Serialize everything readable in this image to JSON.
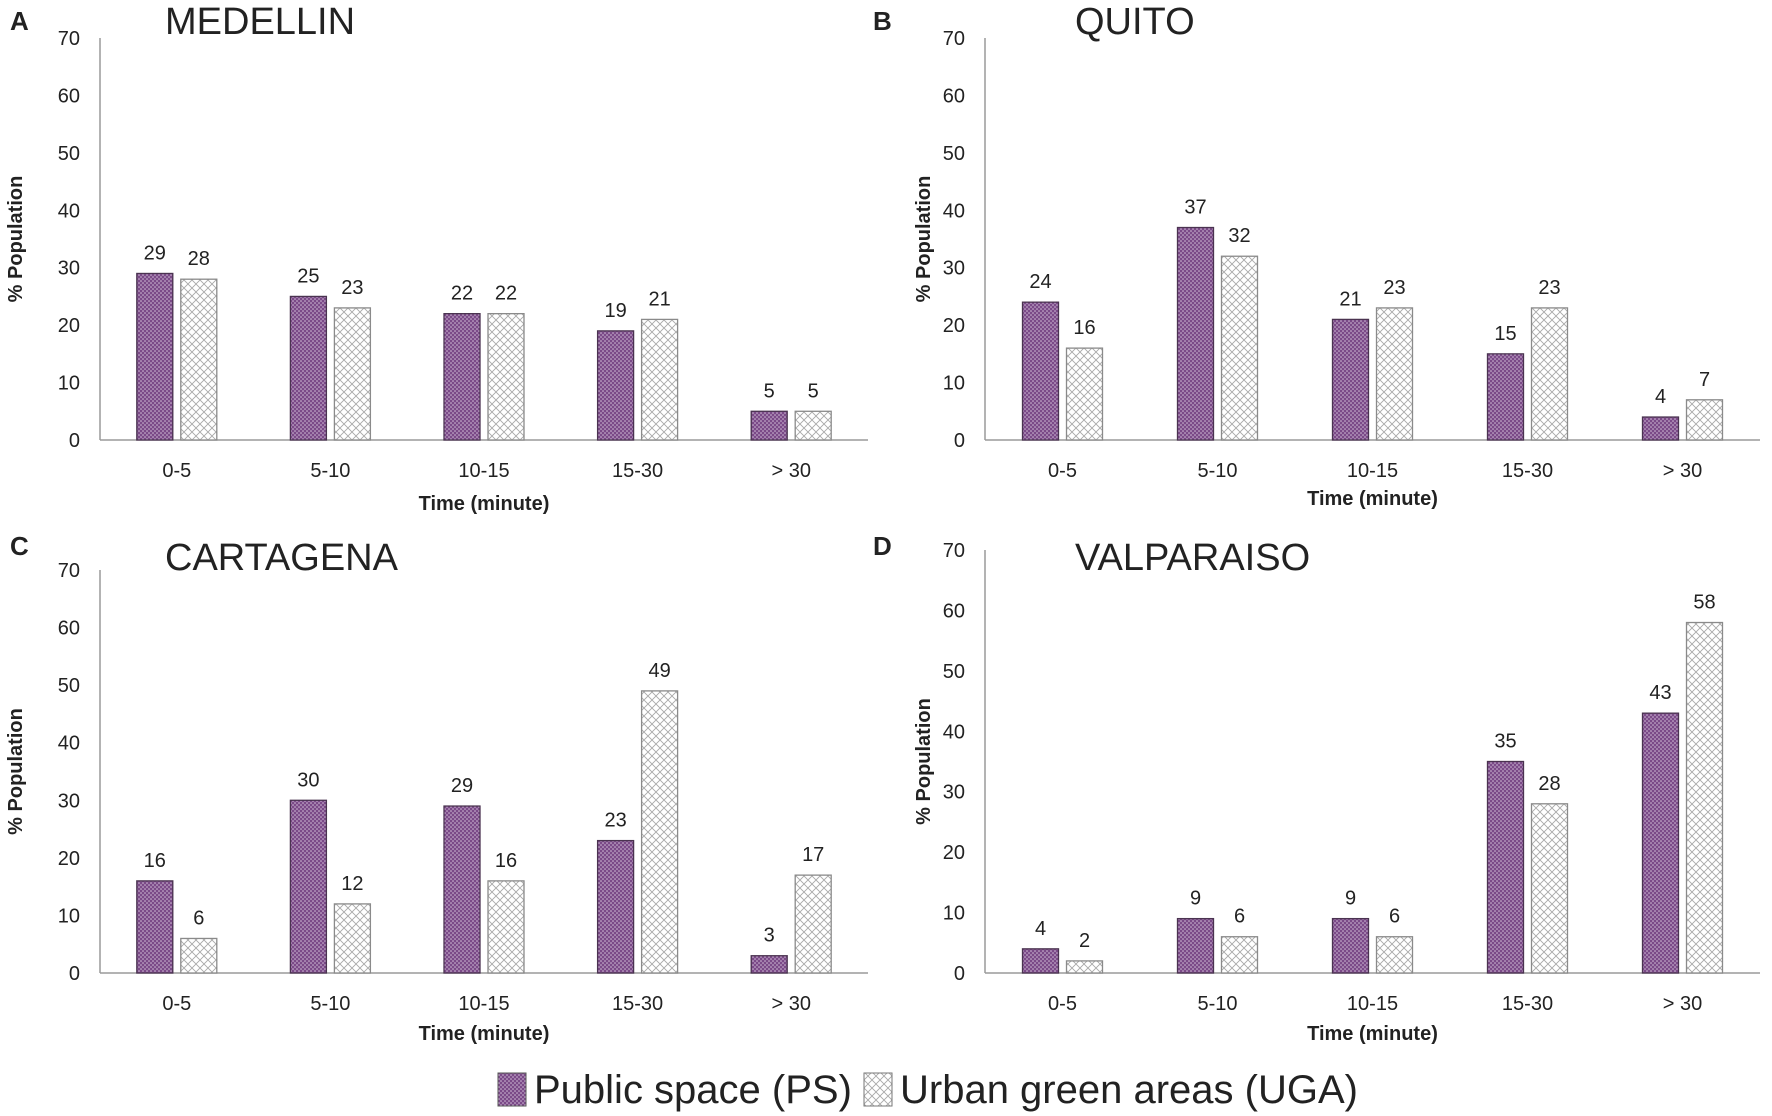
{
  "figure": {
    "legend": {
      "items": [
        {
          "label": "Public space (PS)",
          "pattern": "dots",
          "color": "#7b4a88"
        },
        {
          "label": "Urban green areas (UGA)",
          "pattern": "crosshatch",
          "color": "#9a9a9a"
        }
      ]
    }
  },
  "chart_data": [
    {
      "type": "bar",
      "panel_letter": "A",
      "title": "MEDELLIN",
      "xlabel": "Time (minute)",
      "ylabel": "% Population",
      "ylim": [
        0,
        70
      ],
      "yticks": [
        0,
        10,
        20,
        30,
        40,
        50,
        60,
        70
      ],
      "grid": false,
      "categories": [
        "0-5",
        "5-10",
        "10-15",
        "15-30",
        "> 30"
      ],
      "series": [
        {
          "name": "Public space (PS)",
          "values": [
            29,
            25,
            22,
            19,
            5
          ]
        },
        {
          "name": "Urban green areas (UGA)",
          "values": [
            28,
            23,
            22,
            21,
            5
          ]
        }
      ]
    },
    {
      "type": "bar",
      "panel_letter": "B",
      "title": "QUITO",
      "xlabel": "Time (minute)",
      "ylabel": "% Population",
      "ylim": [
        0,
        70
      ],
      "yticks": [
        0,
        10,
        20,
        30,
        40,
        50,
        60,
        70
      ],
      "grid": false,
      "categories": [
        "0-5",
        "5-10",
        "10-15",
        "15-30",
        "> 30"
      ],
      "series": [
        {
          "name": "Public space (PS)",
          "values": [
            24,
            37,
            21,
            15,
            4
          ]
        },
        {
          "name": "Urban green areas (UGA)",
          "values": [
            16,
            32,
            23,
            23,
            7
          ]
        }
      ]
    },
    {
      "type": "bar",
      "panel_letter": "C",
      "title": "CARTAGENA",
      "xlabel": "Time (minute)",
      "ylabel": "% Population",
      "ylim": [
        0,
        70
      ],
      "yticks": [
        0,
        10,
        20,
        30,
        40,
        50,
        60,
        70
      ],
      "grid": false,
      "categories": [
        "0-5",
        "5-10",
        "10-15",
        "15-30",
        "> 30"
      ],
      "series": [
        {
          "name": "Public space (PS)",
          "values": [
            16,
            30,
            29,
            23,
            3
          ]
        },
        {
          "name": "Urban green areas (UGA)",
          "values": [
            6,
            12,
            16,
            49,
            17
          ]
        }
      ]
    },
    {
      "type": "bar",
      "panel_letter": "D",
      "title": "VALPARAISO",
      "xlabel": "Time (minute)",
      "ylabel": "% Population",
      "ylim": [
        0,
        70
      ],
      "yticks": [
        0,
        10,
        20,
        30,
        40,
        50,
        60,
        70
      ],
      "grid": false,
      "categories": [
        "0-5",
        "5-10",
        "10-15",
        "15-30",
        "> 30"
      ],
      "series": [
        {
          "name": "Public space (PS)",
          "values": [
            4,
            9,
            9,
            35,
            43
          ]
        },
        {
          "name": "Urban green areas (UGA)",
          "values": [
            2,
            6,
            6,
            28,
            58
          ]
        }
      ]
    }
  ]
}
